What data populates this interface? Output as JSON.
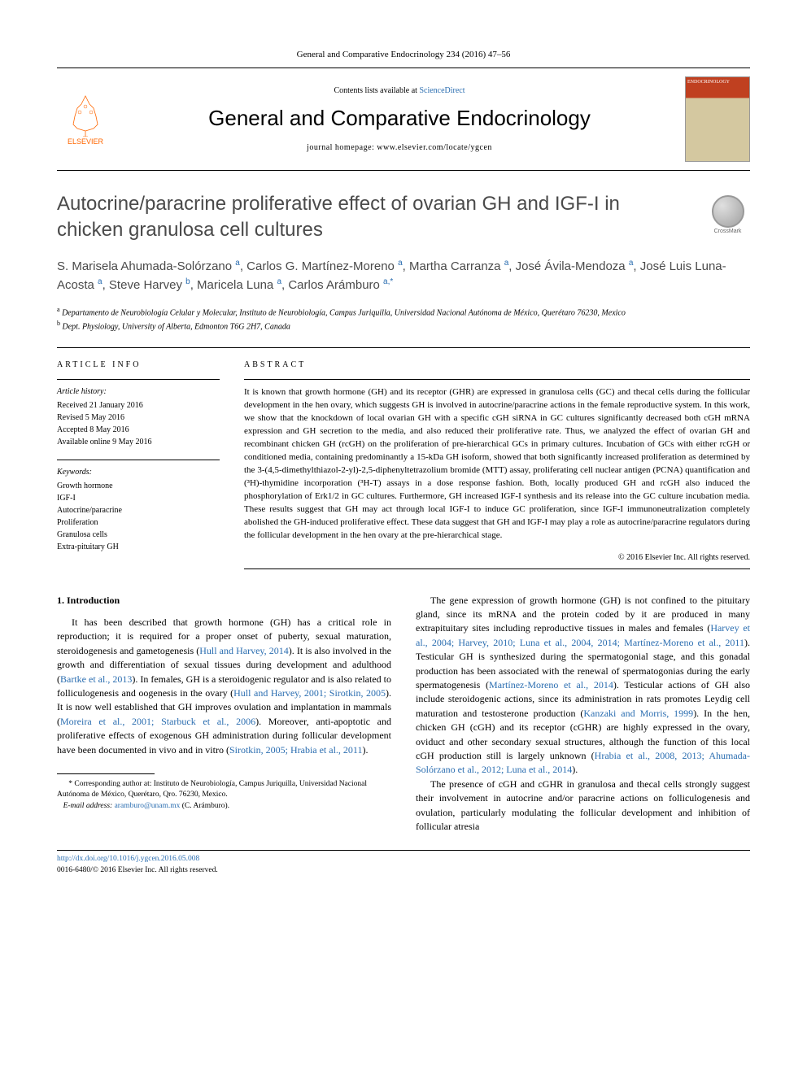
{
  "header": {
    "citation": "General and Comparative Endocrinology 234 (2016) 47–56",
    "contents_line_prefix": "Contents lists available at ",
    "contents_link": "ScienceDirect",
    "journal_name": "General and Comparative Endocrinology",
    "homepage_prefix": "journal homepage: ",
    "homepage_url": "www.elsevier.com/locate/ygcen",
    "publisher_name": "ELSEVIER",
    "cover_label": "ENDOCRINOLOGY"
  },
  "title": "Autocrine/paracrine proliferative effect of ovarian GH and IGF-I in chicken granulosa cell cultures",
  "crossmark_label": "CrossMark",
  "authors_html": "S. Marisela Ahumada-Solórzano <sup>a</sup>, Carlos G. Martínez-Moreno <sup>a</sup>, Martha Carranza <sup>a</sup>, José Ávila-Mendoza <sup>a</sup>, José Luis Luna-Acosta <sup>a</sup>, Steve Harvey <sup>b</sup>, Maricela Luna <sup>a</sup>, Carlos Arámburo <sup>a,*</sup>",
  "affiliations": [
    {
      "marker": "a",
      "text": "Departamento de Neurobiología Celular y Molecular, Instituto de Neurobiología, Campus Juriquilla, Universidad Nacional Autónoma de México, Querétaro 76230, Mexico"
    },
    {
      "marker": "b",
      "text": "Dept. Physiology, University of Alberta, Edmonton T6G 2H7, Canada"
    }
  ],
  "article_info": {
    "heading": "ARTICLE INFO",
    "history_label": "Article history:",
    "history": [
      "Received 21 January 2016",
      "Revised 5 May 2016",
      "Accepted 8 May 2016",
      "Available online 9 May 2016"
    ],
    "keywords_label": "Keywords:",
    "keywords": [
      "Growth hormone",
      "IGF-I",
      "Autocrine/paracrine",
      "Proliferation",
      "Granulosa cells",
      "Extra-pituitary GH"
    ]
  },
  "abstract": {
    "heading": "ABSTRACT",
    "text": "It is known that growth hormone (GH) and its receptor (GHR) are expressed in granulosa cells (GC) and thecal cells during the follicular development in the hen ovary, which suggests GH is involved in autocrine/paracrine actions in the female reproductive system. In this work, we show that the knockdown of local ovarian GH with a specific cGH siRNA in GC cultures significantly decreased both cGH mRNA expression and GH secretion to the media, and also reduced their proliferative rate. Thus, we analyzed the effect of ovarian GH and recombinant chicken GH (rcGH) on the proliferation of pre-hierarchical GCs in primary cultures. Incubation of GCs with either rcGH or conditioned media, containing predominantly a 15-kDa GH isoform, showed that both significantly increased proliferation as determined by the 3-(4,5-dimethylthiazol-2-yl)-2,5-diphenyltetrazolium bromide (MTT) assay, proliferating cell nuclear antigen (PCNA) quantification and (³H)-thymidine incorporation (³H-T) assays in a dose response fashion. Both, locally produced GH and rcGH also induced the phosphorylation of Erk1/2 in GC cultures. Furthermore, GH increased IGF-I synthesis and its release into the GC culture incubation media. These results suggest that GH may act through local IGF-I to induce GC proliferation, since IGF-I immunoneutralization completely abolished the GH-induced proliferative effect. These data suggest that GH and IGF-I may play a role as autocrine/paracrine regulators during the follicular development in the hen ovary at the pre-hierarchical stage.",
    "copyright": "© 2016 Elsevier Inc. All rights reserved."
  },
  "body": {
    "section_heading": "1. Introduction",
    "col1_p1_pre": "It has been described that growth hormone (GH) has a critical role in reproduction; it is required for a proper onset of puberty, sexual maturation, steroidogenesis and gametogenesis (",
    "col1_ref1": "Hull and Harvey, 2014",
    "col1_p1_mid1": "). It is also involved in the growth and differentiation of sexual tissues during development and adulthood (",
    "col1_ref2": "Bartke et al., 2013",
    "col1_p1_mid2": "). In females, GH is a steroidogenic regulator and is also related to folliculogenesis and oogenesis in the ovary (",
    "col1_ref3": "Hull and Harvey, 2001; Sirotkin, 2005",
    "col1_p1_mid3": "). It is now well established that GH improves ovulation and implantation in mammals (",
    "col1_ref4": "Moreira et al., 2001; Starbuck et al., 2006",
    "col1_p1_mid4": "). Moreover, anti-apoptotic and proliferative effects of exogenous GH administration during follicular development have been documented in vivo and in vitro (",
    "col1_ref5": "Sirotkin, 2005; Hrabia et al., 2011",
    "col1_p1_post": ").",
    "col2_p1_pre": "The gene expression of growth hormone (GH) is not confined to the pituitary gland, since its mRNA and the protein coded by it are produced in many extrapituitary sites including reproductive tissues in males and females (",
    "col2_ref1": "Harvey et al., 2004; Harvey, 2010; Luna et al., 2004, 2014; Martínez-Moreno et al., 2011",
    "col2_p1_mid1": "). Testicular GH is synthesized during the spermatogonial stage, and this gonadal production has been associated with the renewal of spermatogonias during the early spermatogenesis (",
    "col2_ref2": "Martínez-Moreno et al., 2014",
    "col2_p1_mid2": "). Testicular actions of GH also include steroidogenic actions, since its administration in rats promotes Leydig cell maturation and testosterone production (",
    "col2_ref3": "Kanzaki and Morris, 1999",
    "col2_p1_mid3": "). In the hen, chicken GH (cGH) and its receptor (cGHR) are highly expressed in the ovary, oviduct and other secondary sexual structures, although the function of this local cGH production still is largely unknown (",
    "col2_ref4": "Hrabia et al., 2008, 2013; Ahumada-Solórzano et al., 2012; Luna et al., 2014",
    "col2_p1_post": ").",
    "col2_p2": "The presence of cGH and cGHR in granulosa and thecal cells strongly suggest their involvement in autocrine and/or paracrine actions on folliculogenesis and ovulation, particularly modulating the follicular development and inhibition of follicular atresia"
  },
  "footnote": {
    "corresponding": "* Corresponding author at: Instituto de Neurobiología, Campus Juriquilla, Universidad Nacional Autónoma de México, Querétaro, Qro. 76230, Mexico.",
    "email_label": "E-mail address: ",
    "email": "aramburo@unam.mx",
    "email_suffix": " (C. Arámburo)."
  },
  "footer": {
    "doi_url": "http://dx.doi.org/10.1016/j.ygcen.2016.05.008",
    "issn_copyright": "0016-6480/© 2016 Elsevier Inc. All rights reserved."
  },
  "colors": {
    "link": "#2a6db0",
    "text": "#000000",
    "title_gray": "#4a4a4a",
    "elsevier_orange": "#ff6600"
  }
}
